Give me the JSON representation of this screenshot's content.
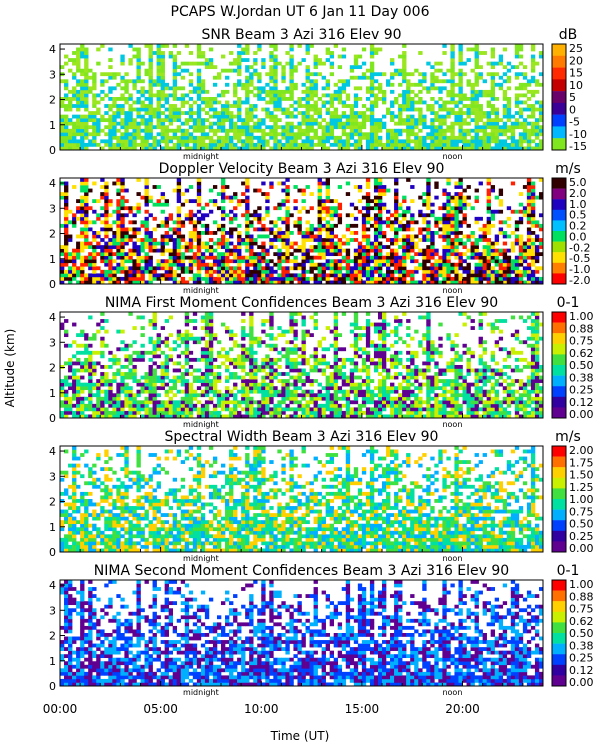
{
  "figure": {
    "title": "PCAPS W.Jordan UT   6 Jan 11 Day 006",
    "ylabel": "Altitude (km)",
    "xlabel": "Time (UT)",
    "xticks": [
      "00:00",
      "05:00",
      "10:00",
      "15:00",
      "20:00"
    ],
    "markers": [
      "midnight",
      "noon"
    ]
  },
  "chart_data": [
    {
      "type": "heatmap",
      "title": "SNR Beam 3 Azi 316 Elev 90",
      "unit": "dB",
      "ylim": [
        0,
        4.2
      ],
      "yticks": [
        "0",
        "1",
        "2",
        "3",
        "4"
      ],
      "xlim_hours": [
        0,
        24
      ],
      "colorbar_labels": [
        "25",
        "20",
        "15",
        "10",
        "5",
        "0",
        "-5",
        "-10",
        "-15"
      ],
      "colorbar_colors": [
        "#ffb000",
        "#ff7a00",
        "#ff2a00",
        "#c40000",
        "#6a006a",
        "#3a0098",
        "#0040ff",
        "#00b8ff",
        "#7fe61f"
      ],
      "dominant": [
        "#7fe61f",
        "#9ae61f",
        "#00c8e0"
      ]
    },
    {
      "type": "heatmap",
      "title": "Doppler Velocity Beam 3 Azi 316 Elev 90",
      "unit": "m/s",
      "ylim": [
        0,
        4.2
      ],
      "yticks": [
        "0",
        "1",
        "2",
        "3",
        "4"
      ],
      "xlim_hours": [
        0,
        24
      ],
      "colorbar_labels": [
        "5.0",
        "2.0",
        "1.0",
        "0.5",
        "0.2",
        "0.0",
        "-0.2",
        "-0.5",
        "-1.0",
        "-2.0"
      ],
      "colorbar_colors": [
        "#300000",
        "#800080",
        "#2000c0",
        "#0050ff",
        "#00c0ff",
        "#00e060",
        "#a0e000",
        "#ffe000",
        "#ff8000",
        "#ff0000"
      ],
      "dominant": [
        "#ff2000",
        "#ffe000",
        "#300000",
        "#2000c0",
        "#00e060"
      ]
    },
    {
      "type": "heatmap",
      "title": "NIMA First Moment Confidences Beam 3 Azi 316 Elev 90",
      "unit": "0-1",
      "ylim": [
        0,
        4.2
      ],
      "yticks": [
        "0",
        "1",
        "2",
        "3",
        "4"
      ],
      "xlim_hours": [
        0,
        24
      ],
      "colorbar_labels": [
        "1.00",
        "0.88",
        "0.75",
        "0.62",
        "0.50",
        "0.38",
        "0.25",
        "0.12",
        "0.00"
      ],
      "colorbar_colors": [
        "#ff0000",
        "#ff7000",
        "#ffd000",
        "#c8f000",
        "#40e040",
        "#00e0a0",
        "#00b0ff",
        "#0040ff",
        "#3000a0",
        "#600090"
      ],
      "dominant": [
        "#00e0a0",
        "#40e040",
        "#600090",
        "#c8f000"
      ]
    },
    {
      "type": "heatmap",
      "title": "Spectral Width Beam 3 Azi 316 Elev 90",
      "unit": "m/s",
      "ylim": [
        0,
        4.2
      ],
      "yticks": [
        "0",
        "1",
        "2",
        "3",
        "4"
      ],
      "xlim_hours": [
        0,
        24
      ],
      "colorbar_labels": [
        "2.00",
        "1.75",
        "1.50",
        "1.25",
        "1.00",
        "0.75",
        "0.50",
        "0.25",
        "0.00"
      ],
      "colorbar_colors": [
        "#ff0000",
        "#ff7000",
        "#ffd000",
        "#c8f000",
        "#40e040",
        "#00e0a0",
        "#00b0ff",
        "#0040ff",
        "#3000a0",
        "#600090"
      ],
      "dominant": [
        "#00e0a0",
        "#40e040",
        "#00b0ff",
        "#ffd000"
      ]
    },
    {
      "type": "heatmap",
      "title": "NIMA Second Moment Confidences Beam 3 Azi 316 Elev 90",
      "unit": "0-1",
      "ylim": [
        0,
        4.2
      ],
      "yticks": [
        "0",
        "1",
        "2",
        "3",
        "4"
      ],
      "xlim_hours": [
        0,
        24
      ],
      "colorbar_labels": [
        "1.00",
        "0.88",
        "0.75",
        "0.62",
        "0.50",
        "0.38",
        "0.25",
        "0.12",
        "0.00"
      ],
      "colorbar_colors": [
        "#ff0000",
        "#ff7000",
        "#ffd000",
        "#c8f000",
        "#40e040",
        "#00e0a0",
        "#00b0ff",
        "#0040ff",
        "#3000a0",
        "#600090"
      ],
      "dominant": [
        "#0040ff",
        "#00b0ff",
        "#600090"
      ]
    }
  ]
}
